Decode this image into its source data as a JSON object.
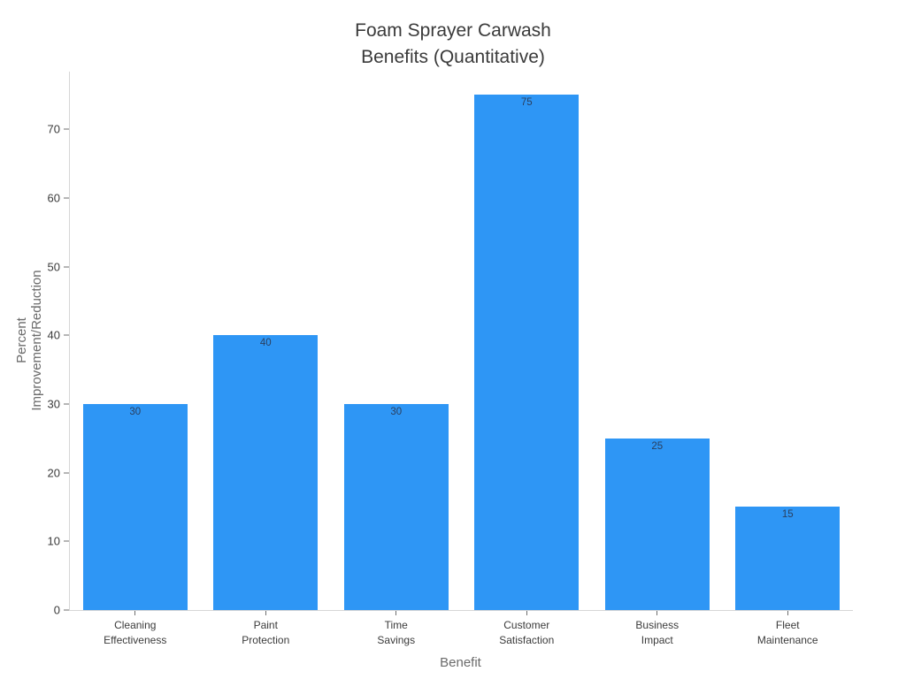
{
  "chart": {
    "title": "Foam Sprayer Carwash\nBenefits (Quantitative)"
  },
  "chart_data": {
    "type": "bar",
    "title": "Foam Sprayer Carwash Benefits (Quantitative)",
    "xlabel": "Benefit",
    "ylabel": "Percent\nImprovement/Reduction",
    "categories": [
      "Cleaning\nEffectiveness",
      "Paint\nProtection",
      "Time\nSavings",
      "Customer\nSatisfaction",
      "Business\nImpact",
      "Fleet\nMaintenance"
    ],
    "values": [
      30,
      40,
      30,
      75,
      25,
      15
    ],
    "bar_value_labels": [
      "30",
      "40",
      "30",
      "75",
      "25",
      "15"
    ],
    "yticks": [
      0,
      10,
      20,
      30,
      40,
      50,
      60,
      70
    ],
    "ylim": [
      0,
      78.4
    ],
    "grid": false,
    "legend": false,
    "bar_width_fraction": 0.8,
    "colors": {
      "bar": "#2e96f5",
      "bar_value_label": "#2a3f5f",
      "axis_line": "#d6d6d6",
      "tick_mark": "#6e6e6e",
      "y_tick_label": "#3b3b3b",
      "x_tick_label": "#3b3b3b",
      "axis_title": "#6b6b6b",
      "title": "#3a3a3a",
      "background": "#ffffff"
    }
  }
}
